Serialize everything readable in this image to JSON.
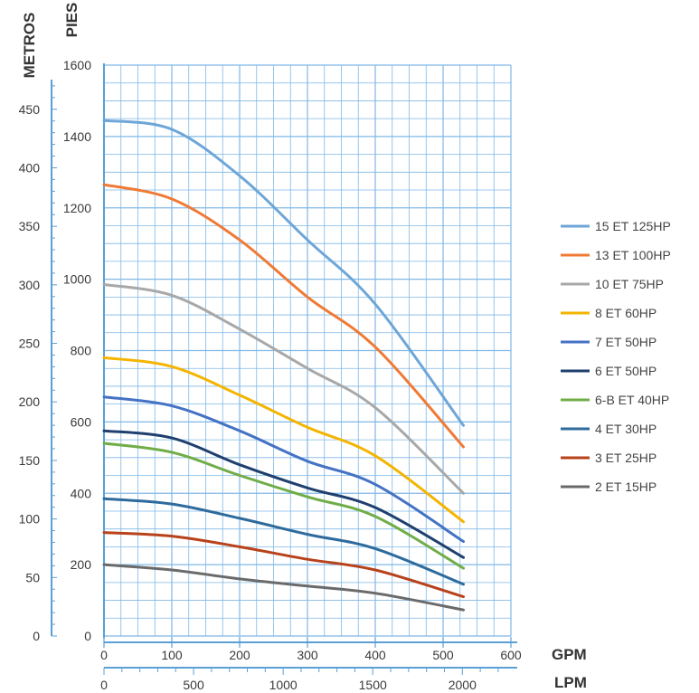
{
  "chart_data": {
    "type": "line",
    "axes": {
      "pies_label": "PIES",
      "metros_label": "METROS",
      "gpm_label": "GPM",
      "lpm_label": "LPM",
      "pies_ticks": [
        0,
        200,
        400,
        600,
        800,
        1000,
        1200,
        1400,
        1600
      ],
      "metros_ticks": [
        0,
        50,
        100,
        150,
        200,
        250,
        300,
        350,
        400,
        450
      ],
      "gpm_ticks": [
        0,
        100,
        200,
        300,
        400,
        500,
        600
      ],
      "lpm_ticks": [
        0,
        500,
        1000,
        1500,
        2000
      ],
      "ylim_pies": [
        0,
        1600
      ],
      "ylim_metros": [
        0,
        487.7
      ],
      "xlim_gpm": [
        0,
        600
      ],
      "xlim_lpm": [
        0,
        2271
      ],
      "grid": true
    },
    "legend_position": "right",
    "x_gpm": [
      0,
      100,
      200,
      300,
      400,
      530
    ],
    "series": [
      {
        "name": "15 ET 125HP",
        "color": "#6ea6d8",
        "values": [
          1445,
          1420,
          1290,
          1110,
          930,
          590
        ]
      },
      {
        "name": "13 ET 100HP",
        "color": "#ef7a35",
        "values": [
          1265,
          1225,
          1110,
          950,
          810,
          530
        ]
      },
      {
        "name": "10 ET 75HP",
        "color": "#a8a8a8",
        "values": [
          985,
          955,
          860,
          750,
          640,
          400
        ]
      },
      {
        "name": "8 ET 60HP",
        "color": "#f4b400",
        "values": [
          780,
          755,
          675,
          585,
          505,
          320
        ]
      },
      {
        "name": "7 ET 50HP",
        "color": "#4472c4",
        "values": [
          670,
          645,
          575,
          490,
          425,
          265
        ]
      },
      {
        "name": "6 ET 50HP",
        "color": "#1f3f6e",
        "values": [
          575,
          555,
          480,
          415,
          360,
          220
        ]
      },
      {
        "name": "6-B ET 40HP",
        "color": "#70ad47",
        "values": [
          540,
          515,
          450,
          390,
          335,
          190
        ]
      },
      {
        "name": "4 ET 30HP",
        "color": "#2e6b9c",
        "values": [
          385,
          370,
          330,
          285,
          245,
          145
        ]
      },
      {
        "name": "3 ET 25HP",
        "color": "#b8421a",
        "values": [
          290,
          280,
          250,
          215,
          185,
          110
        ]
      },
      {
        "name": "2 ET 15HP",
        "color": "#6a6a6a",
        "values": [
          200,
          185,
          160,
          140,
          120,
          73
        ]
      }
    ]
  }
}
